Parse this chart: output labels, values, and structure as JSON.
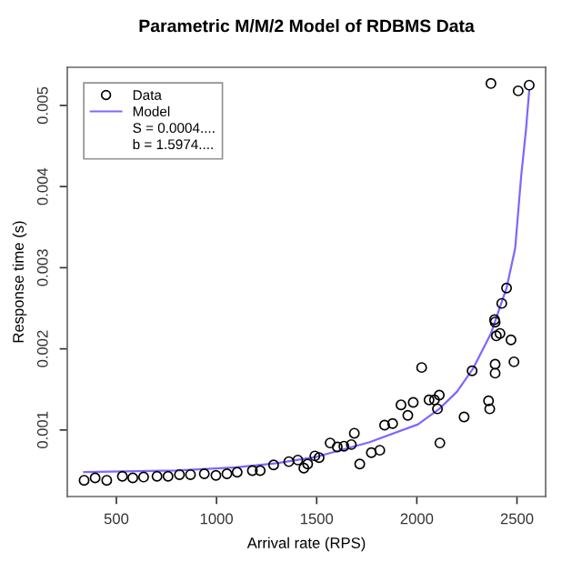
{
  "chart_data": {
    "type": "scatter",
    "title": "Parametric M/M/2 Model of RDBMS Data",
    "xlabel": "Arrival rate (RPS)",
    "ylabel": "Response time (s)",
    "xlim": [
      255,
      2643
    ],
    "ylim": [
      0.00018,
      0.00547
    ],
    "xticks": [
      500,
      1000,
      1500,
      2000,
      2500
    ],
    "yticks": [
      0.001,
      0.002,
      0.003,
      0.004,
      0.005
    ],
    "grid": false,
    "legend": "top left",
    "annotations": [
      "S = 0.0004....",
      "b = 1.5974...."
    ],
    "series": [
      {
        "name": "Data",
        "marker": "circle",
        "color": "#000000",
        "x": [
          339,
          394,
          452,
          530,
          582,
          636,
          703,
          758,
          815,
          870,
          939,
          997,
          1052,
          1103,
          1179,
          1218,
          1285,
          1361,
          1406,
          1436,
          1455,
          1491,
          1512,
          1567,
          1603,
          1636,
          1673,
          1688,
          1715,
          1773,
          1815,
          1839,
          1879,
          1921,
          1955,
          1982,
          2024,
          2061,
          2088,
          2112,
          2103,
          2115,
          2236,
          2276,
          2358,
          2364,
          2388,
          2391,
          2391,
          2391,
          2397,
          2415,
          2470,
          2485,
          2370,
          2506,
          2561,
          2448,
          2424
        ],
        "values": [
          0.00038,
          0.00041,
          0.00038,
          0.00043,
          0.00041,
          0.00042,
          0.00043,
          0.00043,
          0.00045,
          0.00045,
          0.00046,
          0.00044,
          0.00046,
          0.00048,
          0.0005,
          0.0005,
          0.00057,
          0.00061,
          0.00063,
          0.00053,
          0.00058,
          0.00068,
          0.00066,
          0.00084,
          0.00079,
          0.0008,
          0.00082,
          0.00096,
          0.00058,
          0.00072,
          0.00075,
          0.00106,
          0.00108,
          0.00131,
          0.00118,
          0.00134,
          0.00177,
          0.00137,
          0.00137,
          0.00143,
          0.00126,
          0.00084,
          0.00116,
          0.00173,
          0.00136,
          0.00126,
          0.00236,
          0.00233,
          0.00181,
          0.0017,
          0.00216,
          0.00219,
          0.00211,
          0.00184,
          0.00527,
          0.00518,
          0.00525,
          0.00275,
          0.00256
        ]
      },
      {
        "name": "Model",
        "type": "line",
        "line_style": "solid",
        "color": "#7f66ff",
        "x": [
          339,
          800,
          1100,
          1300,
          1500,
          1764,
          2006,
          2112,
          2200,
          2279,
          2370,
          2448,
          2491,
          2521,
          2545,
          2561
        ],
        "values": [
          0.00048,
          0.0005,
          0.00054,
          0.00059,
          0.00067,
          0.00085,
          0.00107,
          0.00126,
          0.00147,
          0.00175,
          0.00219,
          0.00275,
          0.00324,
          0.00413,
          0.0047,
          0.00518
        ]
      }
    ]
  }
}
